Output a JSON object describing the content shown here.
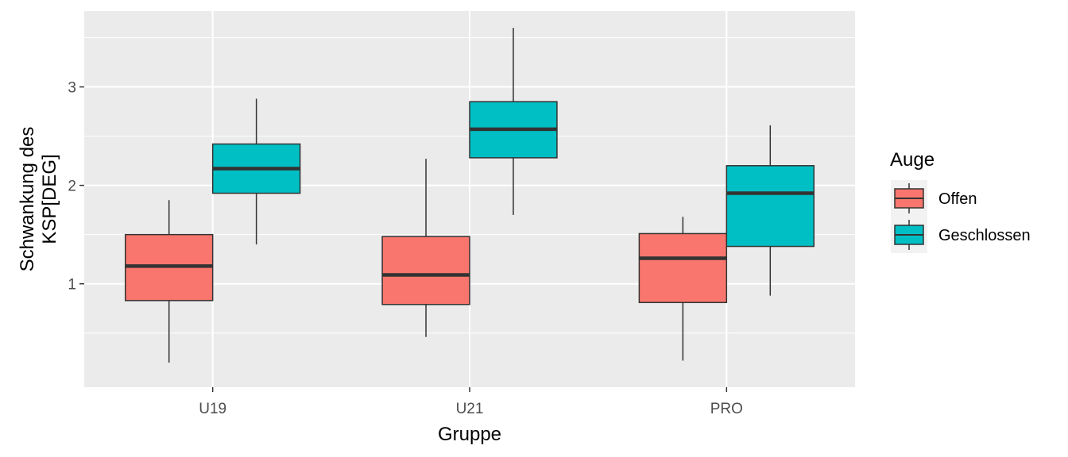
{
  "chart_data": {
    "type": "boxplot",
    "categories": [
      "U19",
      "U21",
      "PRO"
    ],
    "xlabel": "Gruppe",
    "ylabel_lines": [
      "Schwankung des",
      "KSP[DEG]"
    ],
    "ylim": [
      -0.05,
      3.77
    ],
    "yticks": [
      1,
      2,
      3
    ],
    "grid": true,
    "legend": {
      "title": "Auge",
      "position": "right",
      "entries": [
        "Offen",
        "Geschlossen"
      ]
    },
    "series": [
      {
        "name": "Offen",
        "color": "#F8766D",
        "boxes": [
          {
            "category": "U19",
            "min": 0.2,
            "q1": 0.83,
            "median": 1.18,
            "q3": 1.5,
            "max": 1.85
          },
          {
            "category": "U21",
            "min": 0.46,
            "q1": 0.79,
            "median": 1.09,
            "q3": 1.48,
            "max": 2.27
          },
          {
            "category": "PRO",
            "min": 0.22,
            "q1": 0.81,
            "median": 1.26,
            "q3": 1.51,
            "max": 1.68
          }
        ]
      },
      {
        "name": "Geschlossen",
        "color": "#00BFC4",
        "boxes": [
          {
            "category": "U19",
            "min": 1.4,
            "q1": 1.92,
            "median": 2.17,
            "q3": 2.42,
            "max": 2.88
          },
          {
            "category": "U21",
            "min": 1.7,
            "q1": 2.28,
            "median": 2.57,
            "q3": 2.85,
            "max": 3.6
          },
          {
            "category": "PRO",
            "min": 0.88,
            "q1": 1.38,
            "median": 1.92,
            "q3": 2.2,
            "max": 2.61
          }
        ]
      }
    ]
  }
}
